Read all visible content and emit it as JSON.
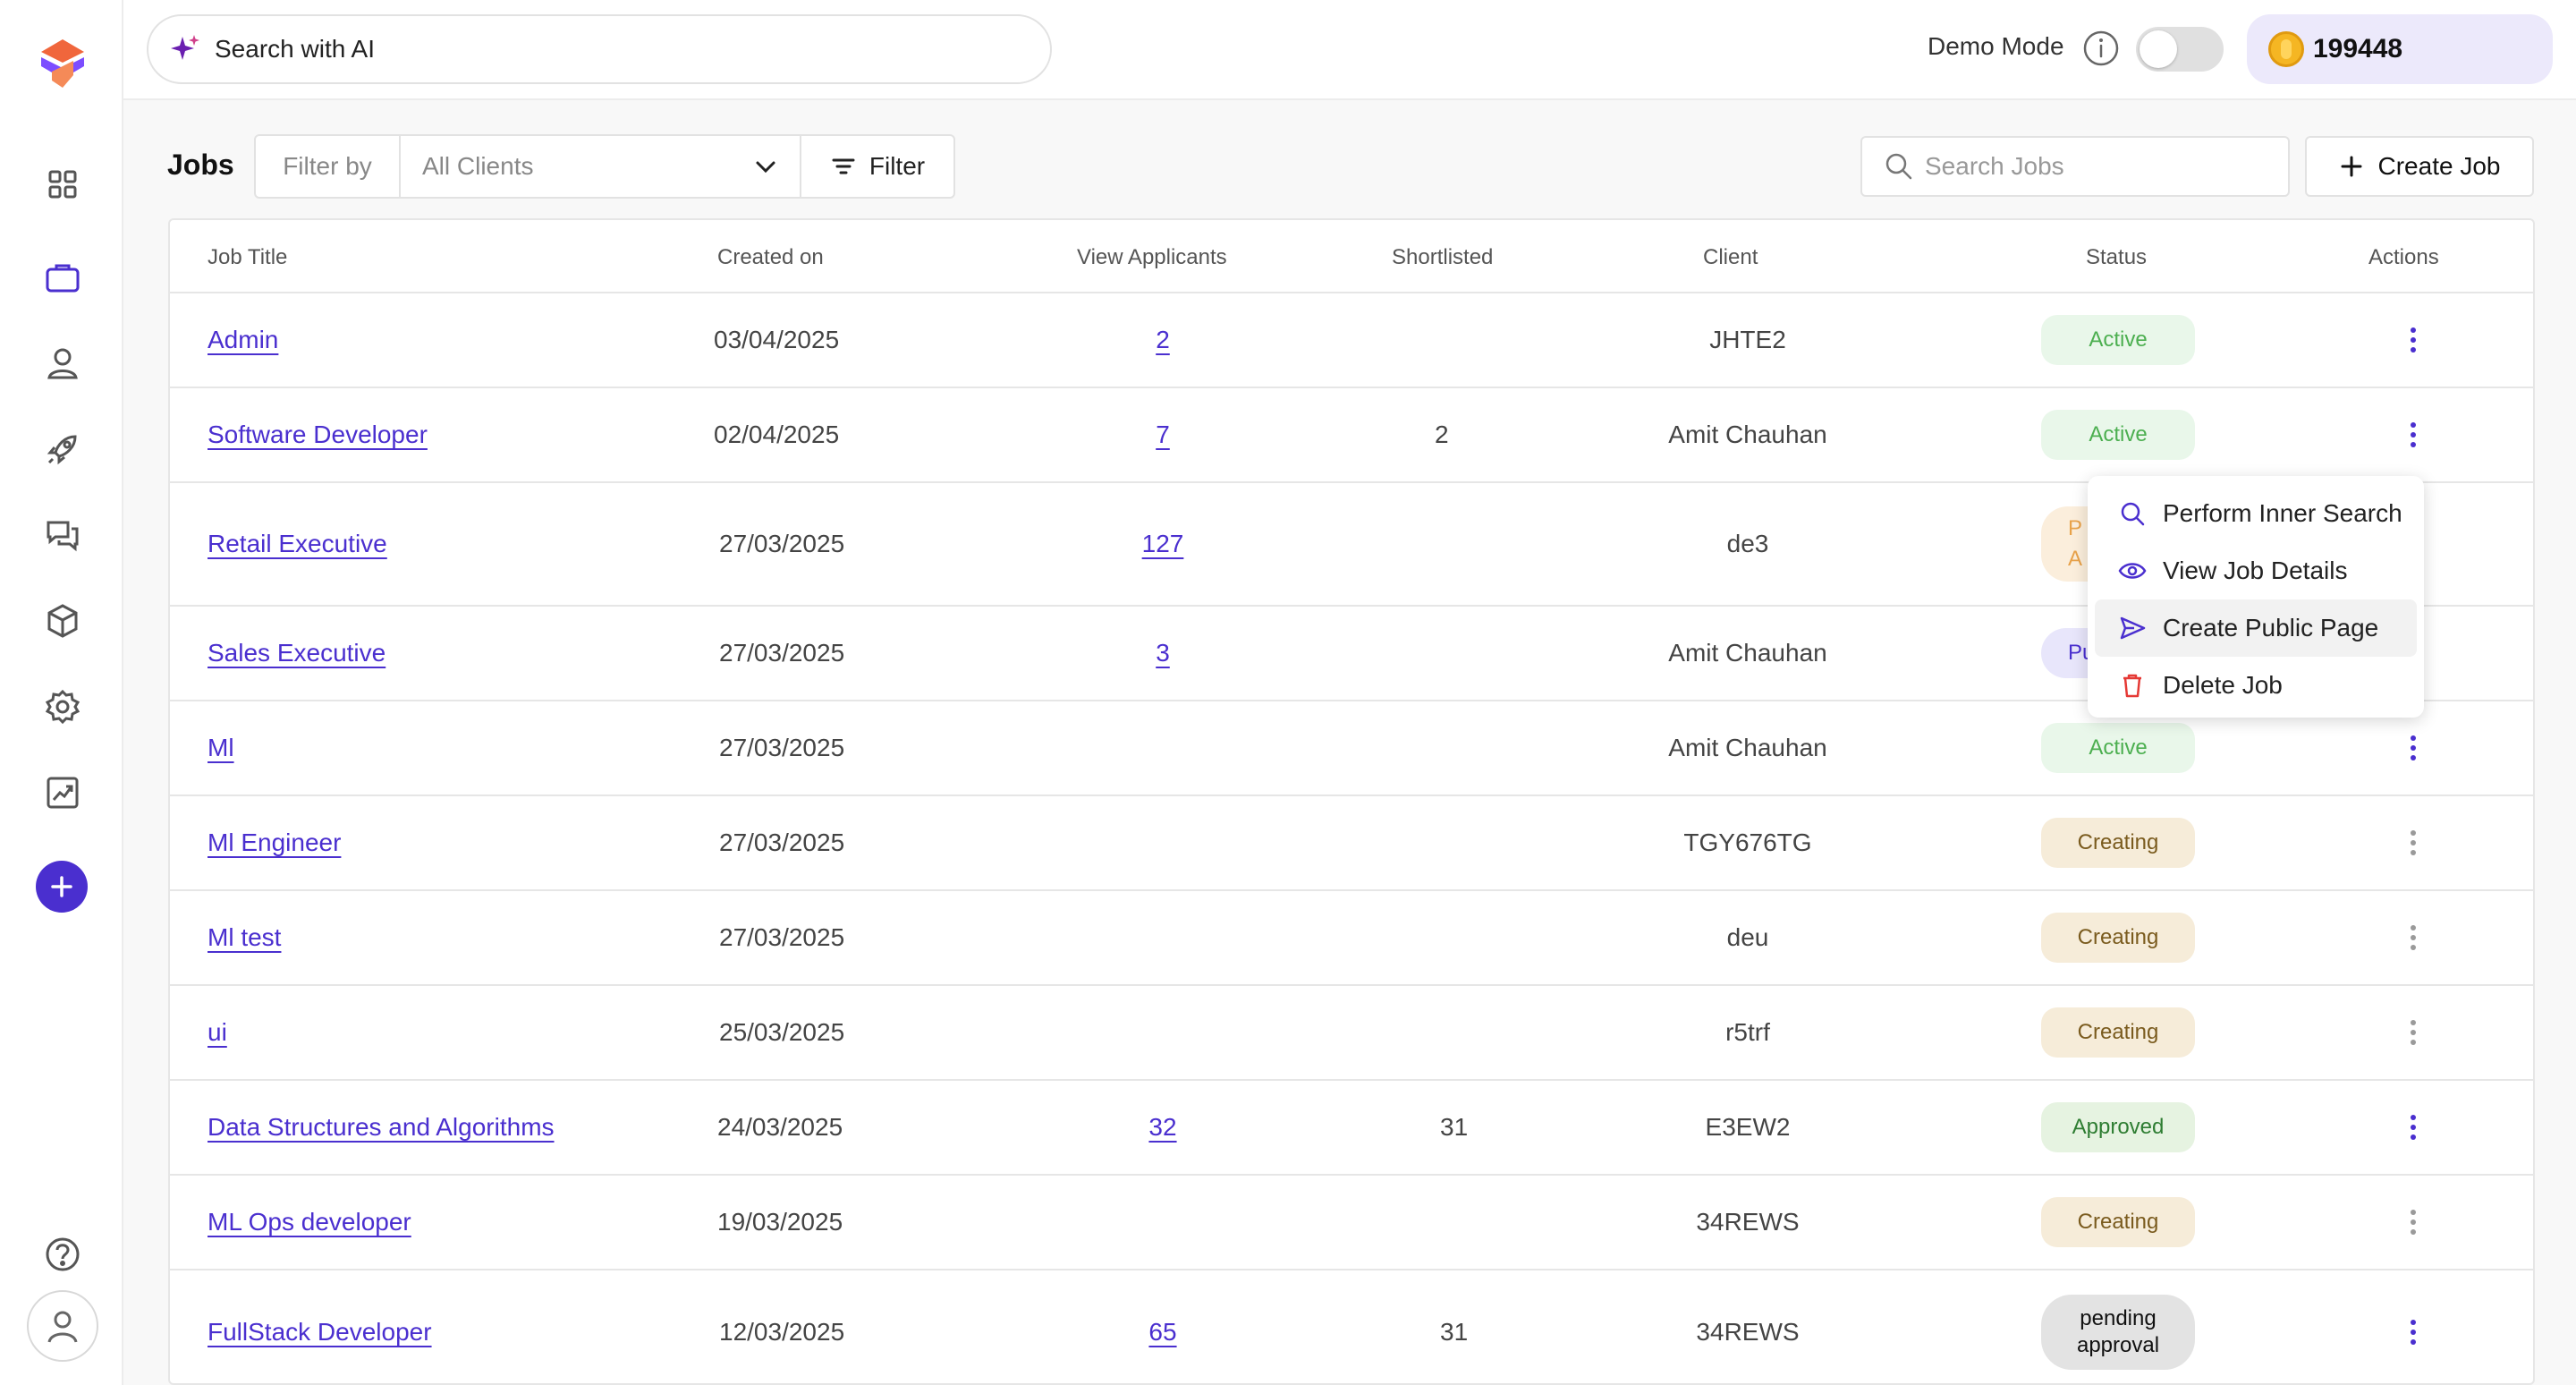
{
  "topbar": {
    "ai_search_label": "Search with AI",
    "demo_mode_label": "Demo Mode",
    "demo_mode_on": false,
    "coin_count": "199448"
  },
  "toolbar": {
    "title": "Jobs",
    "filter_by_label": "Filter by",
    "client_select_value": "All Clients",
    "filter_button_label": "Filter",
    "search_placeholder": "Search Jobs",
    "create_job_label": "Create Job"
  },
  "table": {
    "columns": [
      "Job Title",
      "Created on",
      "View Applicants",
      "Shortlisted",
      "Client",
      "Status",
      "Actions"
    ],
    "rows": [
      {
        "title": "Admin",
        "created": "03/04/2025",
        "applicants": "2",
        "shortlisted": "",
        "client": "JHTE2",
        "status": "Active"
      },
      {
        "title": "Software Developer",
        "created": "02/04/2025",
        "applicants": "7",
        "shortlisted": "2",
        "client": "Amit Chauhan",
        "status": "Active"
      },
      {
        "title": "Retail Executive",
        "created": "27/03/2025",
        "applicants": "127",
        "shortlisted": "",
        "client": "de3",
        "status": "P\nA"
      },
      {
        "title": "Sales Executive",
        "created": "27/03/2025",
        "applicants": "3",
        "shortlisted": "",
        "client": "Amit Chauhan",
        "status": "Pu"
      },
      {
        "title": "Ml",
        "created": "27/03/2025",
        "applicants": "",
        "shortlisted": "",
        "client": "Amit Chauhan",
        "status": "Active"
      },
      {
        "title": "Ml Engineer",
        "created": "27/03/2025",
        "applicants": "",
        "shortlisted": "",
        "client": "TGY676TG",
        "status": "Creating"
      },
      {
        "title": "Ml test",
        "created": "27/03/2025",
        "applicants": "",
        "shortlisted": "",
        "client": "deu",
        "status": "Creating"
      },
      {
        "title": "ui",
        "created": "25/03/2025",
        "applicants": "",
        "shortlisted": "",
        "client": "r5trf",
        "status": "Creating"
      },
      {
        "title": "Data Structures and Algorithms",
        "created": "24/03/2025",
        "applicants": "32",
        "shortlisted": "31",
        "client": "E3EW2",
        "status": "Approved"
      },
      {
        "title": "ML Ops developer",
        "created": "19/03/2025",
        "applicants": "",
        "shortlisted": "",
        "client": "34REWS",
        "status": "Creating"
      },
      {
        "title": "FullStack Developer",
        "created": "12/03/2025",
        "applicants": "65",
        "shortlisted": "31",
        "client": "34REWS",
        "status": "pending approval"
      }
    ]
  },
  "action_menu": {
    "items": [
      "Perform Inner Search",
      "View Job Details",
      "Create Public Page",
      "Delete Job"
    ],
    "highlighted": "Create Public Page"
  },
  "colors": {
    "accent": "#4a2fcf",
    "active_bg": "#e9f7ea",
    "creating_bg": "#f6ecd9",
    "approved_bg": "#e6f3e1",
    "pending_bg": "#e3e3e3",
    "delete_red": "#e53935"
  },
  "icons": {
    "sidebar": [
      "dashboard-icon",
      "briefcase-icon",
      "user-icon",
      "rocket-icon",
      "chat-icon",
      "cube-icon",
      "settings-icon",
      "analytics-icon",
      "plus-icon",
      "help-icon",
      "profile-icon"
    ]
  }
}
